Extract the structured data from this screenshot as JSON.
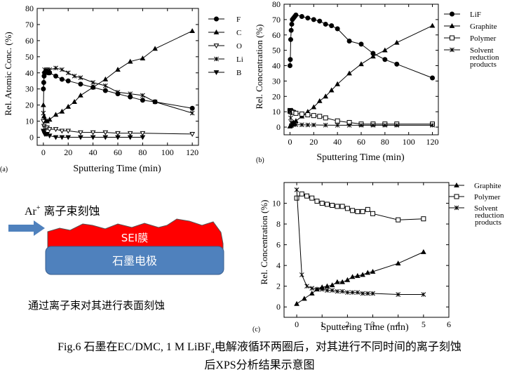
{
  "figure": {
    "caption_prefix": "Fig.6 石墨在EC/DMC, 1 M LiBF",
    "caption_sub": "4",
    "caption_suffix": "电解液循环两圈后，对其进行不同时间的离子刻蚀",
    "caption_line2": "后XPS分析结果示意图"
  },
  "schematic": {
    "ion_label": "Ar",
    "ion_charge": "+",
    "ion_text": "离子束刻蚀",
    "sei_label": "SEI膜",
    "electrode_label": "石墨电极",
    "description": "通过离子束对其进行表面刻蚀",
    "colors": {
      "arrow": "#4f81bd",
      "sei": "#ff0000",
      "electrode": "#4f81bd"
    }
  },
  "chart_data": [
    {
      "panel": "(a)",
      "type": "line",
      "xlabel": "Sputtering Time (min)",
      "ylabel": "Rel. Atomic Conc. (%)",
      "xlim": [
        -5,
        125
      ],
      "ylim": [
        -5,
        80
      ],
      "xticks": [
        0,
        20,
        40,
        60,
        80,
        100,
        120
      ],
      "yticks": [
        0,
        10,
        20,
        30,
        40,
        50,
        60,
        70,
        80
      ],
      "legend_position": "right",
      "series": [
        {
          "name": "F",
          "marker": "circle-filled",
          "x": [
            0,
            0.3,
            0.6,
            1,
            1.5,
            2,
            3,
            4,
            5,
            10,
            15,
            20,
            30,
            40,
            50,
            60,
            70,
            80,
            90,
            120
          ],
          "y": [
            30,
            34,
            38,
            40,
            40,
            41,
            41,
            40,
            40,
            38,
            36,
            35,
            33,
            31,
            29,
            27,
            25,
            23,
            22,
            18
          ]
        },
        {
          "name": "C",
          "marker": "triangle-filled",
          "x": [
            0,
            0.5,
            1,
            2,
            3,
            5,
            10,
            15,
            20,
            25,
            30,
            40,
            50,
            60,
            70,
            80,
            90,
            120
          ],
          "y": [
            20,
            13,
            11,
            10,
            10,
            11,
            14,
            16,
            19,
            22,
            26,
            31,
            36,
            42,
            47,
            49,
            55,
            66
          ]
        },
        {
          "name": "O",
          "marker": "triangle-down-open",
          "x": [
            0,
            0.5,
            1,
            2,
            3,
            5,
            10,
            15,
            20,
            30,
            40,
            50,
            60,
            70,
            80,
            120
          ],
          "y": [
            10,
            7,
            6,
            6,
            6,
            5,
            5,
            4,
            4,
            3,
            3,
            3,
            2.5,
            2.5,
            2.5,
            2
          ]
        },
        {
          "name": "Li",
          "marker": "x",
          "x": [
            0,
            0.5,
            1,
            2,
            3,
            5,
            10,
            15,
            20,
            25,
            30,
            40,
            50,
            60,
            70,
            80,
            90,
            120
          ],
          "y": [
            15,
            39,
            42,
            41,
            42,
            42,
            43,
            42,
            40,
            38,
            37,
            34,
            32,
            28,
            27,
            26,
            22,
            15
          ]
        },
        {
          "name": "B",
          "marker": "triangle-down-filled",
          "x": [
            0,
            0.5,
            1,
            2,
            3,
            5,
            10,
            15,
            20,
            30,
            40,
            50,
            60,
            70,
            80
          ],
          "y": [
            4,
            3,
            2,
            2,
            2,
            1,
            0,
            0,
            0,
            0,
            0,
            0,
            0,
            0,
            0
          ]
        }
      ]
    },
    {
      "panel": "(b)",
      "type": "line",
      "xlabel": "Sputtering Time (min)",
      "ylabel": "Rel. Concentration (%)",
      "xlim": [
        -5,
        125
      ],
      "ylim": [
        -5,
        80
      ],
      "xticks": [
        0,
        20,
        40,
        60,
        80,
        100,
        120
      ],
      "yticks": [
        0,
        10,
        20,
        30,
        40,
        50,
        60,
        70,
        80
      ],
      "legend_position": "right",
      "series": [
        {
          "name": "LiF",
          "marker": "circle-filled",
          "x": [
            0,
            0.3,
            0.6,
            1,
            1.5,
            2,
            3,
            4,
            5,
            10,
            15,
            20,
            25,
            30,
            35,
            40,
            50,
            60,
            70,
            80,
            90,
            120
          ],
          "y": [
            40,
            44,
            57,
            63,
            67,
            70,
            71,
            72,
            73,
            72,
            71,
            70,
            69,
            67,
            66,
            64,
            56,
            54,
            48,
            44,
            41,
            32
          ]
        },
        {
          "name": "Graphite",
          "marker": "triangle-filled",
          "x": [
            0,
            1,
            2,
            3,
            5,
            10,
            15,
            20,
            25,
            30,
            35,
            40,
            50,
            60,
            70,
            80,
            90,
            120
          ],
          "y": [
            0.5,
            1,
            2,
            3,
            4,
            7,
            10,
            13,
            17,
            20,
            24,
            28,
            35,
            41,
            46,
            50,
            55,
            66
          ]
        },
        {
          "name": "Polymer",
          "marker": "square-open",
          "x": [
            0,
            0.3,
            0.6,
            1,
            2,
            3,
            5,
            10,
            15,
            20,
            25,
            30,
            40,
            50,
            60,
            70,
            80,
            90,
            120
          ],
          "y": [
            10.5,
            10.8,
            10.5,
            10,
            9.8,
            9.5,
            9,
            8.5,
            8,
            7.5,
            7,
            6,
            4,
            3,
            2,
            2,
            2,
            2,
            2
          ]
        },
        {
          "name": "Solvent reduction products",
          "marker": "x",
          "x": [
            0,
            0.3,
            0.6,
            1,
            2,
            3,
            5,
            10,
            15,
            20,
            30,
            40,
            50,
            60,
            70,
            80,
            90,
            120
          ],
          "y": [
            11,
            10,
            6,
            3,
            2,
            1.8,
            1.6,
            1.5,
            1.4,
            1.4,
            1.3,
            1.2,
            1.2,
            1.2,
            1.2,
            1.2,
            1.2,
            1.2
          ]
        }
      ]
    },
    {
      "panel": "(c)",
      "type": "line",
      "xlabel": "Sputtering Time (min)",
      "ylabel": "Rel. Concentration (%)",
      "xlim": [
        -0.5,
        6
      ],
      "ylim": [
        -1,
        12
      ],
      "xticks": [
        0,
        1,
        2,
        3,
        4,
        5,
        6
      ],
      "yticks": [
        0,
        2,
        4,
        6,
        8,
        10
      ],
      "legend_position": "right",
      "series": [
        {
          "name": "Graphite",
          "marker": "triangle-filled",
          "x": [
            0,
            0.3,
            0.6,
            0.8,
            1,
            1.2,
            1.4,
            1.6,
            1.8,
            2,
            2.2,
            2.4,
            2.6,
            2.8,
            3,
            4,
            5
          ],
          "y": [
            0.3,
            0.8,
            1.3,
            1.7,
            1.9,
            2,
            2.1,
            2.4,
            2.4,
            2.6,
            2.9,
            3,
            3.1,
            3.3,
            3.4,
            4.2,
            5.3
          ]
        },
        {
          "name": "Polymer",
          "marker": "square-open",
          "x": [
            0,
            0.2,
            0.4,
            0.6,
            0.8,
            1,
            1.2,
            1.4,
            1.6,
            1.8,
            2,
            2.2,
            2.4,
            2.6,
            2.8,
            3,
            4,
            5
          ],
          "y": [
            10.5,
            10.9,
            10.7,
            10.5,
            10.2,
            10,
            9.9,
            9.8,
            9.7,
            9.7,
            9.5,
            9.3,
            9.2,
            9.2,
            9.4,
            9,
            8.4,
            8.5
          ]
        },
        {
          "name": "Solvent reduction products",
          "marker": "x",
          "x": [
            0,
            0.2,
            0.4,
            0.6,
            0.8,
            1,
            1.2,
            1.4,
            1.6,
            1.8,
            2,
            2.2,
            2.4,
            2.6,
            2.8,
            3,
            4,
            5
          ],
          "y": [
            11.3,
            3.1,
            2,
            1.8,
            1.7,
            1.7,
            1.6,
            1.6,
            1.5,
            1.5,
            1.4,
            1.4,
            1.4,
            1.3,
            1.3,
            1.3,
            1.2,
            1.2
          ]
        }
      ]
    }
  ]
}
